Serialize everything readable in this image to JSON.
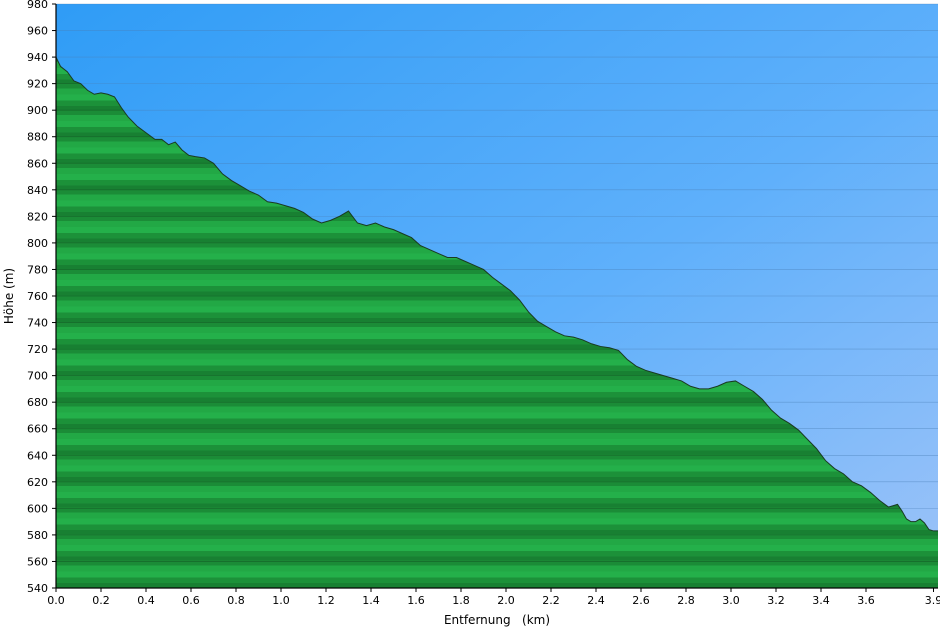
{
  "chart_data": {
    "type": "area",
    "title": "",
    "xlabel": "Entfernung   (km)",
    "ylabel": "Höhe (m)",
    "xlim": [
      0.0,
      3.92
    ],
    "ylim": [
      540,
      980
    ],
    "grid": true,
    "x_ticks": [
      0.0,
      0.2,
      0.4,
      0.6,
      0.8,
      1.0,
      1.2,
      1.4,
      1.6,
      1.8,
      2.0,
      2.2,
      2.4,
      2.6,
      2.8,
      3.0,
      3.2,
      3.4,
      3.6,
      3.9
    ],
    "x_tick_labels": [
      "0.0",
      "0.2",
      "0.4",
      "0.6",
      "0.8",
      "1.0",
      "1.2",
      "1.4",
      "1.6",
      "1.8",
      "2.0",
      "2.2",
      "2.4",
      "2.6",
      "2.8",
      "3.0",
      "3.2",
      "3.4",
      "3.6",
      "3.9"
    ],
    "y_ticks": [
      540,
      560,
      580,
      600,
      620,
      640,
      660,
      680,
      700,
      720,
      740,
      760,
      780,
      800,
      820,
      840,
      860,
      880,
      900,
      920,
      940,
      960,
      980
    ],
    "y_tick_labels": [
      "540",
      "560",
      "580",
      "600",
      "620",
      "640",
      "660",
      "680",
      "700",
      "720",
      "740",
      "760",
      "780",
      "800",
      "820",
      "840",
      "860",
      "880",
      "900",
      "920",
      "940",
      "960",
      "980"
    ],
    "series": [
      {
        "x": [
          0.0,
          0.02,
          0.05,
          0.08,
          0.11,
          0.14,
          0.17,
          0.2,
          0.23,
          0.26,
          0.29,
          0.32,
          0.36,
          0.4,
          0.44,
          0.47,
          0.5,
          0.53,
          0.56,
          0.59,
          0.62,
          0.66,
          0.7,
          0.74,
          0.78,
          0.82,
          0.86,
          0.9,
          0.94,
          0.98,
          1.02,
          1.06,
          1.1,
          1.14,
          1.18,
          1.22,
          1.26,
          1.3,
          1.34,
          1.38,
          1.42,
          1.46,
          1.5,
          1.54,
          1.58,
          1.62,
          1.66,
          1.7,
          1.74,
          1.78,
          1.82,
          1.86,
          1.9,
          1.94,
          1.98,
          2.02,
          2.06,
          2.1,
          2.14,
          2.18,
          2.22,
          2.26,
          2.3,
          2.34,
          2.38,
          2.42,
          2.46,
          2.5,
          2.54,
          2.58,
          2.62,
          2.66,
          2.7,
          2.74,
          2.78,
          2.82,
          2.86,
          2.9,
          2.94,
          2.98,
          3.02,
          3.06,
          3.1,
          3.14,
          3.18,
          3.22,
          3.26,
          3.3,
          3.34,
          3.38,
          3.42,
          3.46,
          3.5,
          3.54,
          3.58,
          3.62,
          3.66,
          3.7,
          3.72,
          3.74,
          3.76,
          3.78,
          3.8,
          3.82,
          3.84,
          3.86,
          3.88,
          3.9,
          3.92
        ],
        "y": [
          940,
          933,
          929,
          922,
          920,
          915,
          912,
          913,
          912,
          910,
          902,
          895,
          888,
          883,
          878,
          878,
          874,
          876,
          870,
          866,
          865,
          864,
          860,
          852,
          847,
          843,
          839,
          836,
          831,
          830,
          828,
          826,
          823,
          818,
          815,
          817,
          820,
          824,
          815,
          813,
          815,
          812,
          810,
          807,
          804,
          798,
          795,
          792,
          789,
          789,
          786,
          783,
          780,
          774,
          769,
          764,
          757,
          748,
          741,
          737,
          733,
          730,
          729,
          727,
          724,
          722,
          721,
          719,
          712,
          707,
          704,
          702,
          700,
          698,
          696,
          692,
          690,
          690,
          692,
          695,
          696,
          692,
          688,
          682,
          674,
          668,
          664,
          659,
          652,
          645,
          636,
          630,
          626,
          620,
          617,
          612,
          606,
          601,
          602,
          603,
          598,
          592,
          590,
          590,
          592,
          589,
          584,
          583,
          583
        ]
      }
    ]
  }
}
